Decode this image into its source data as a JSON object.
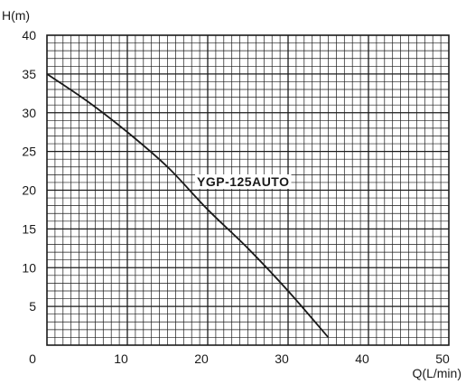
{
  "chart_data": {
    "type": "line",
    "xlabel": "Q(L/min)",
    "ylabel": "H(m)",
    "xlim": [
      0,
      50
    ],
    "ylim": [
      0,
      40
    ],
    "x_ticks": [
      "0",
      "10",
      "20",
      "30",
      "40",
      "50"
    ],
    "y_ticks": [
      "5",
      "10",
      "15",
      "20",
      "25",
      "30",
      "35",
      "40"
    ],
    "grid": true,
    "minor_grid_step_x": 1,
    "minor_grid_step_y": 1,
    "series": [
      {
        "name": "YGP-125AUTO",
        "color": "#1a1a1a",
        "x": [
          0,
          5,
          10,
          15,
          20,
          25,
          30,
          35
        ],
        "y": [
          35,
          31.5,
          27.5,
          23,
          17.5,
          12.5,
          7,
          1
        ]
      }
    ]
  }
}
